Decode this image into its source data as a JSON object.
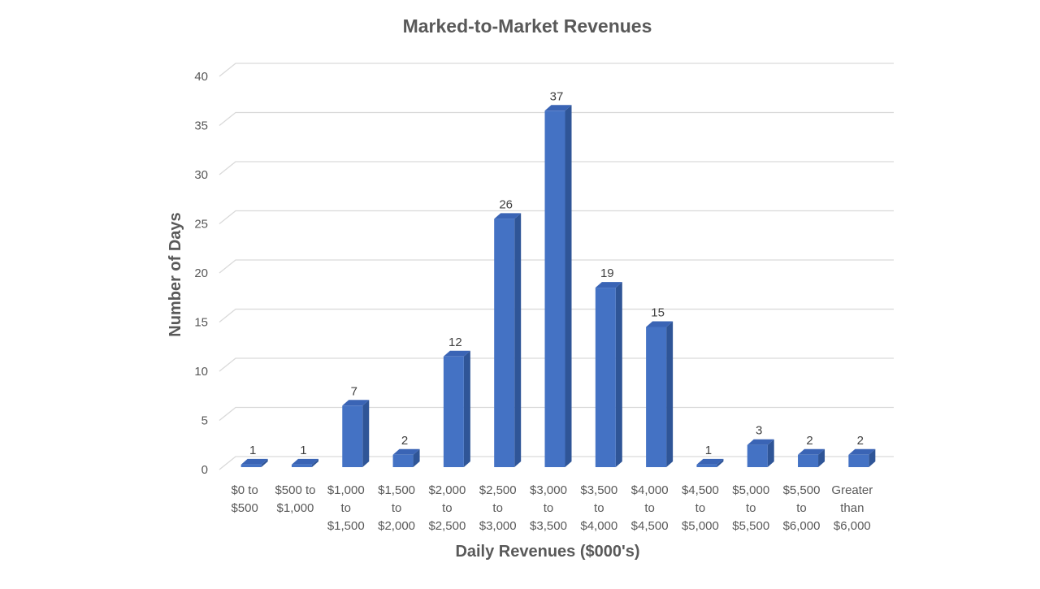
{
  "chart_data": {
    "type": "bar",
    "title": "Marked-to-Market Revenues",
    "xlabel": "Daily Revenues ($000's)",
    "ylabel": "Number of Days",
    "ylim": [
      0,
      40
    ],
    "yticks": [
      0,
      5,
      10,
      15,
      20,
      25,
      30,
      35,
      40
    ],
    "grid": true,
    "style": "3d-column",
    "categories": [
      [
        "$0 to",
        "$500"
      ],
      [
        "$500 to",
        "$1,000"
      ],
      [
        "$1,000",
        "to",
        "$1,500"
      ],
      [
        "$1,500",
        "to",
        "$2,000"
      ],
      [
        "$2,000",
        "to",
        "$2,500"
      ],
      [
        "$2,500",
        "to",
        "$3,000"
      ],
      [
        "$3,000",
        "to",
        "$3,500"
      ],
      [
        "$3,500",
        "to",
        "$4,000"
      ],
      [
        "$4,000",
        "to",
        "$4,500"
      ],
      [
        "$4,500",
        "to",
        "$5,000"
      ],
      [
        "$5,000",
        "to",
        "$5,500"
      ],
      [
        "$5,500",
        "to",
        "$6,000"
      ],
      [
        "Greater",
        "than",
        "$6,000"
      ]
    ],
    "values": [
      1,
      1,
      7,
      2,
      12,
      26,
      37,
      19,
      15,
      1,
      3,
      2,
      2
    ],
    "colors": {
      "bar_front": "#4472c4",
      "bar_side": "#2f5597",
      "bar_top": "#3a64b5",
      "grid": "#d9d9d9",
      "axis_text": "#595959",
      "title_text": "#595959",
      "label_text": "#404040"
    }
  }
}
